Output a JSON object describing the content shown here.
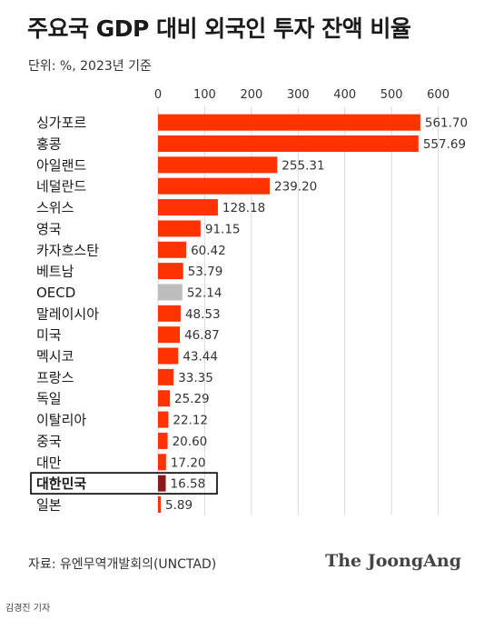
{
  "title": "주요국 GDP 대비 외국인 투자 잔액 비율",
  "unit_note": "단위: %, 2023년 기준",
  "source": "자료: 유엔무역개발회의(UNCTAD)",
  "logo": "The JoongAng",
  "reporter": "김경진 기자",
  "colors": {
    "bar": "#ff3300",
    "oecd": "#bdbdbd",
    "korea": "#8b1a1a",
    "grid": "#d9d9d9"
  },
  "chart_data": {
    "type": "bar",
    "orientation": "horizontal",
    "xlim": [
      0,
      600
    ],
    "x_ticks": [
      0,
      100,
      200,
      300,
      400,
      500,
      600
    ],
    "grid": true,
    "categories": [
      "싱가포르",
      "홍콩",
      "아일랜드",
      "네덜란드",
      "스위스",
      "영국",
      "카자흐스탄",
      "베트남",
      "OECD",
      "말레이시아",
      "미국",
      "멕시코",
      "프랑스",
      "독일",
      "이탈리아",
      "중국",
      "대만",
      "대한민국",
      "일본"
    ],
    "values": [
      561.7,
      557.69,
      255.31,
      239.2,
      128.18,
      91.15,
      60.42,
      53.79,
      52.14,
      48.53,
      46.87,
      43.44,
      33.35,
      25.29,
      22.12,
      20.6,
      17.2,
      16.58,
      5.89
    ],
    "value_labels": [
      "561.70",
      "557.69",
      "255.31",
      "239.20",
      "128.18",
      "91.15",
      "60.42",
      "53.79",
      "52.14",
      "48.53",
      "46.87",
      "43.44",
      "33.35",
      "25.29",
      "22.12",
      "20.60",
      "17.20",
      "16.58",
      "5.89"
    ],
    "highlight": "대한민국",
    "reference": "OECD"
  }
}
